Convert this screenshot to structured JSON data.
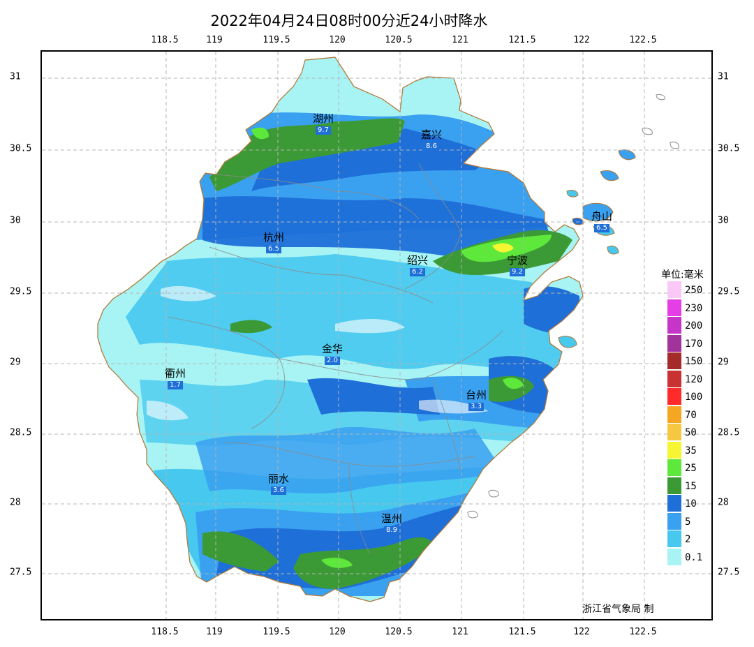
{
  "title": "2022年04月24日08时00分近24小时降水",
  "axes": {
    "lon_ticks": [
      "118.5",
      "119",
      "119.5",
      "120",
      "120.5",
      "121",
      "121.5",
      "122",
      "122.5"
    ],
    "lat_ticks": [
      "31",
      "30.5",
      "30",
      "29.5",
      "29",
      "28.5",
      "28",
      "27.5"
    ]
  },
  "cities": [
    {
      "name": "湖州",
      "value": "9.7"
    },
    {
      "name": "嘉兴",
      "value": "8.6"
    },
    {
      "name": "杭州",
      "value": "6.5"
    },
    {
      "name": "绍兴",
      "value": "6.2"
    },
    {
      "name": "宁波",
      "value": "9.2"
    },
    {
      "name": "舟山",
      "value": "6.5"
    },
    {
      "name": "金华",
      "value": "2.0"
    },
    {
      "name": "衢州",
      "value": "1.7"
    },
    {
      "name": "台州",
      "value": "3.3"
    },
    {
      "name": "丽水",
      "value": "3.6"
    },
    {
      "name": "温州",
      "value": "8.9"
    }
  ],
  "legend": {
    "title": "单位:毫米",
    "items": [
      {
        "label": "250",
        "color": "#f9c8f6"
      },
      {
        "label": "230",
        "color": "#e63ee6"
      },
      {
        "label": "200",
        "color": "#c536c8"
      },
      {
        "label": "170",
        "color": "#a2339c"
      },
      {
        "label": "150",
        "color": "#a52a2a"
      },
      {
        "label": "120",
        "color": "#c83232"
      },
      {
        "label": "100",
        "color": "#ff2b2b"
      },
      {
        "label": "70",
        "color": "#f5a623"
      },
      {
        "label": "50",
        "color": "#f7c742"
      },
      {
        "label": "35",
        "color": "#f5f532"
      },
      {
        "label": "25",
        "color": "#5ee83c"
      },
      {
        "label": "15",
        "color": "#3c9a36"
      },
      {
        "label": "10",
        "color": "#1e6fd8"
      },
      {
        "label": "5",
        "color": "#3aa0f0"
      },
      {
        "label": "2",
        "color": "#46c8ef"
      },
      {
        "label": "0.1",
        "color": "#a8f4f4"
      }
    ]
  },
  "credit": "浙江省气象局 制"
}
